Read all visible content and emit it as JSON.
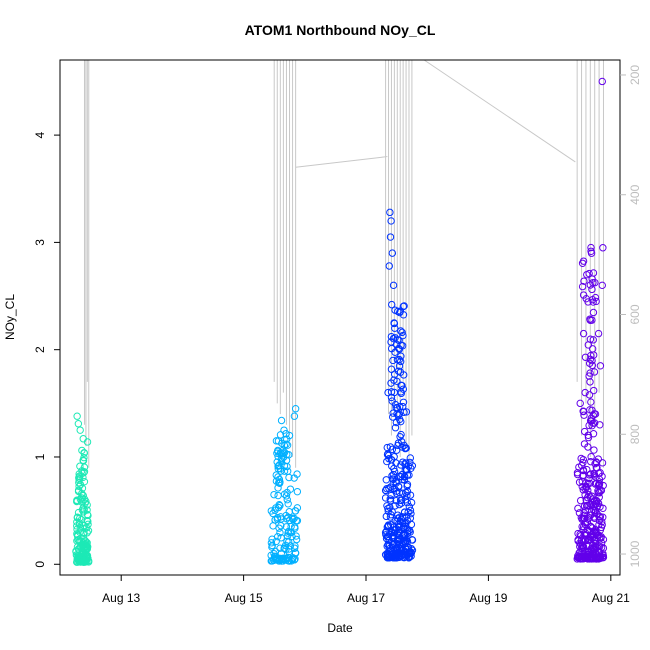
{
  "chart_data": {
    "type": "scatter",
    "title": "ATOM1 Northbound NOy_CL",
    "xlabel": "Date",
    "ylabel": "NOy_CL",
    "x_tick_labels": [
      "Aug 13",
      "Aug 15",
      "Aug 17",
      "Aug 19",
      "Aug 21"
    ],
    "x_tick_values": [
      13,
      15,
      17,
      19,
      21
    ],
    "xlim": [
      12.0,
      21.15
    ],
    "ylim": [
      -0.1,
      4.7
    ],
    "y_ticks": [
      0,
      1,
      2,
      3,
      4
    ],
    "right_axis": {
      "ticks": [
        200,
        400,
        600,
        800,
        1000
      ],
      "range": [
        1035,
        175
      ],
      "color": "#bdbdbd"
    },
    "series": [
      {
        "color": "#1de9b6",
        "x_range": [
          12.26,
          12.47
        ],
        "y_max": 1.38,
        "cluster": [
          0.02,
          0.6
        ],
        "n": 130,
        "outliers": [
          [
            12.28,
            1.38
          ],
          [
            12.3,
            1.31
          ],
          [
            12.33,
            1.25
          ],
          [
            12.38,
            1.17
          ],
          [
            12.45,
            1.14
          ]
        ]
      },
      {
        "color": "#00b0ff",
        "x_range": [
          15.45,
          15.88
        ],
        "y_max": 1.45,
        "cluster": [
          0.03,
          0.9
        ],
        "n": 130,
        "outliers": [
          [
            15.62,
            1.34
          ],
          [
            15.66,
            1.25
          ],
          [
            15.85,
            1.45
          ],
          [
            15.83,
            1.38
          ],
          [
            15.75,
            1.2
          ]
        ]
      },
      {
        "color": "#0033ff",
        "x_range": [
          17.32,
          17.76
        ],
        "y_max": 3.28,
        "cluster": [
          0.06,
          1.1
        ],
        "n": 260,
        "outliers": [
          [
            17.39,
            3.28
          ],
          [
            17.41,
            3.2
          ],
          [
            17.4,
            3.05
          ],
          [
            17.43,
            2.9
          ],
          [
            17.38,
            2.78
          ],
          [
            17.45,
            2.6
          ],
          [
            17.42,
            2.42
          ],
          [
            17.47,
            2.2
          ],
          [
            17.5,
            2.05
          ],
          [
            17.44,
            1.9
          ],
          [
            17.53,
            1.8
          ],
          [
            17.36,
            1.6
          ],
          [
            17.6,
            1.47
          ],
          [
            17.66,
            1.42
          ],
          [
            17.55,
            1.35
          ]
        ]
      },
      {
        "color": "#6200ea",
        "x_range": [
          20.45,
          20.88
        ],
        "y_max": 4.5,
        "cluster": [
          0.05,
          1.0
        ],
        "n": 260,
        "outliers": [
          [
            20.86,
            4.5
          ],
          [
            20.87,
            2.95
          ],
          [
            20.86,
            2.6
          ],
          [
            20.76,
            2.45
          ],
          [
            20.8,
            2.15
          ],
          [
            20.72,
            1.95
          ],
          [
            20.83,
            1.85
          ],
          [
            20.66,
            1.7
          ],
          [
            20.58,
            1.6
          ],
          [
            20.5,
            1.5
          ],
          [
            20.75,
            1.4
          ],
          [
            20.82,
            1.3
          ]
        ]
      }
    ],
    "altitude_trace": {
      "color": "#c8c8c8",
      "segments": [
        {
          "x": [
            12.4,
            12.47
          ],
          "spike_bottoms": [
            1.3,
            1.1,
            1.7,
            0.9
          ]
        },
        {
          "x": [
            15.5,
            15.85
          ],
          "spike_bottoms": [
            1.7,
            1.5,
            1.4,
            1.6,
            1.3,
            1.2,
            1.0,
            0.9
          ]
        },
        {
          "x": [
            17.32,
            17.75
          ],
          "spike_bottoms": [
            1.6,
            1.4,
            1.2,
            1.5,
            1.3,
            1.0,
            1.7,
            1.1,
            0.9,
            1.2
          ]
        },
        {
          "x": [
            20.45,
            20.88
          ],
          "spike_bottoms": [
            1.7,
            1.2,
            1.5,
            1.0,
            1.3,
            1.6,
            0.9
          ]
        }
      ],
      "connectors": [
        {
          "from": [
            15.85,
            3.7
          ],
          "to": [
            17.35,
            3.8
          ]
        },
        {
          "from": [
            17.95,
            4.7
          ],
          "to": [
            20.42,
            3.75
          ]
        }
      ]
    }
  }
}
